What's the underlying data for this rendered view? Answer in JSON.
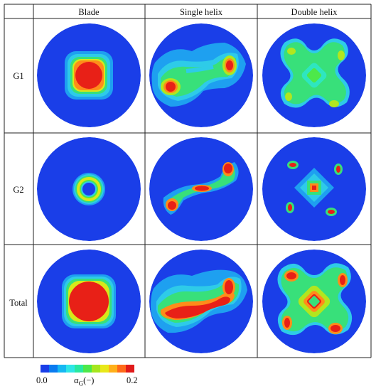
{
  "columns": [
    "Blade",
    "Single helix",
    "Double helix"
  ],
  "rows": [
    "G1",
    "G2",
    "Total"
  ],
  "colorbar": {
    "min_label": "0.0",
    "max_label": "0.2",
    "variable_label": "αG(−)",
    "variable_symbol": "α",
    "variable_subscript": "G",
    "variable_unit": "(−)",
    "colors": [
      "#1a3ee8",
      "#0a7bf0",
      "#16b8f2",
      "#2ee6e6",
      "#28e8a0",
      "#4de84a",
      "#a6e61e",
      "#e8e81a",
      "#ffb01a",
      "#ff6a1a",
      "#e01a1a"
    ]
  },
  "field_colors": {
    "background": "#1a3ee8",
    "low": "#29b6f6",
    "mid_low": "#4dd0e1",
    "mid": "#38e07a",
    "mid_high": "#b2e61e",
    "high": "#ff9a1a",
    "peak": "#e82017"
  }
}
